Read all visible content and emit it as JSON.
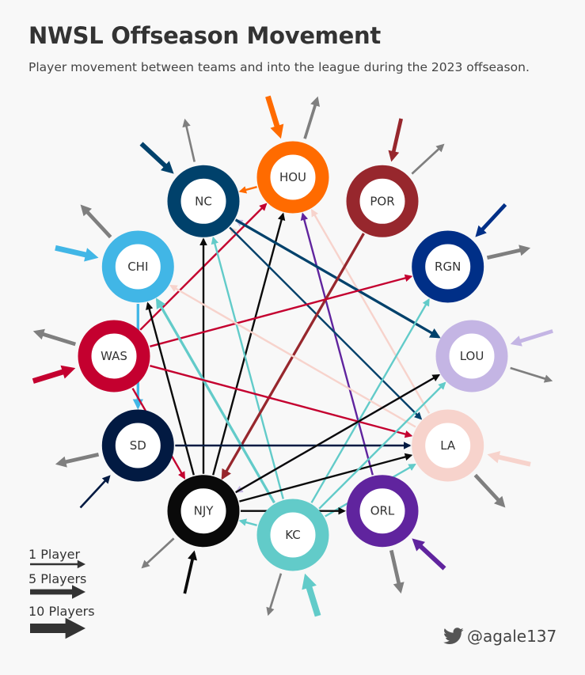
{
  "title": "NWSL Offseason Movement",
  "subtitle": "Player movement between teams and into the league during the 2023 offseason.",
  "handle": "@agale137",
  "handle_icon": "twitter-bird-icon",
  "legend": [
    {
      "label": "1 Player",
      "players": 1
    },
    {
      "label": "5 Players",
      "players": 5
    },
    {
      "label": "10 Players",
      "players": 10
    }
  ],
  "teams": [
    {
      "id": "HOU",
      "label": "HOU",
      "color": "#FF6B00"
    },
    {
      "id": "POR",
      "label": "POR",
      "color": "#97272D"
    },
    {
      "id": "RGN",
      "label": "RGN",
      "color": "#002F87"
    },
    {
      "id": "LOU",
      "label": "LOU",
      "color": "#C4B5E4"
    },
    {
      "id": "LA",
      "label": "LA",
      "color": "#F7D3CC"
    },
    {
      "id": "ORL",
      "label": "ORL",
      "color": "#60249E"
    },
    {
      "id": "KC",
      "label": "KC",
      "color": "#62CBC9"
    },
    {
      "id": "NJY",
      "label": "NJY",
      "color": "#0A0A0A"
    },
    {
      "id": "SD",
      "label": "SD",
      "color": "#021A42"
    },
    {
      "id": "WAS",
      "label": "WAS",
      "color": "#C4002F"
    },
    {
      "id": "CHI",
      "label": "CHI",
      "color": "#41B6E6"
    },
    {
      "id": "NC",
      "label": "NC",
      "color": "#00416B"
    }
  ],
  "league_colors": {
    "out": "#7f7f7f"
  },
  "movements": [
    {
      "from": "WAS",
      "to": "HOU",
      "players": 1
    },
    {
      "from": "NJY",
      "to": "HOU",
      "players": 1
    },
    {
      "from": "LA",
      "to": "HOU",
      "players": 1
    },
    {
      "from": "ORL",
      "to": "HOU",
      "players": 1
    },
    {
      "from": "NJY",
      "to": "NC",
      "players": 1
    },
    {
      "from": "KC",
      "to": "NC",
      "players": 1
    },
    {
      "from": "LOU",
      "to": "NC",
      "players": 1
    },
    {
      "from": "LA",
      "to": "NC",
      "players": 1
    },
    {
      "from": "HOU",
      "to": "NC",
      "players": 1
    },
    {
      "from": "NC",
      "to": "LOU",
      "players": 2
    },
    {
      "from": "NC",
      "to": "LA",
      "players": 1
    },
    {
      "from": "POR",
      "to": "NJY",
      "players": 2
    },
    {
      "from": "WAS",
      "to": "RGN",
      "players": 1
    },
    {
      "from": "KC",
      "to": "RGN",
      "players": 1
    },
    {
      "from": "LA",
      "to": "CHI",
      "players": 1
    },
    {
      "from": "KC",
      "to": "CHI",
      "players": 2
    },
    {
      "from": "NJY",
      "to": "CHI",
      "players": 1
    },
    {
      "from": "CHI",
      "to": "SD",
      "players": 2
    },
    {
      "from": "WAS",
      "to": "NJY",
      "players": 1
    },
    {
      "from": "WAS",
      "to": "LA",
      "players": 1
    },
    {
      "from": "SD",
      "to": "LA",
      "players": 1
    },
    {
      "from": "NJY",
      "to": "LA",
      "players": 1
    },
    {
      "from": "KC",
      "to": "LA",
      "players": 1
    },
    {
      "from": "LOU",
      "to": "NJY",
      "players": 1
    },
    {
      "from": "NJY",
      "to": "LOU",
      "players": 1
    },
    {
      "from": "KC",
      "to": "LOU",
      "players": 1
    },
    {
      "from": "KC",
      "to": "NJY",
      "players": 1
    },
    {
      "from": "NJY",
      "to": "ORL",
      "players": 1
    }
  ],
  "external": [
    {
      "team": "HOU",
      "dir": "in",
      "players": 5
    },
    {
      "team": "HOU",
      "dir": "out",
      "players": 2
    },
    {
      "team": "POR",
      "dir": "in",
      "players": 3
    },
    {
      "team": "POR",
      "dir": "out",
      "players": 1
    },
    {
      "team": "RGN",
      "dir": "in",
      "players": 3
    },
    {
      "team": "RGN",
      "dir": "out",
      "players": 3
    },
    {
      "team": "LOU",
      "dir": "in",
      "players": 3
    },
    {
      "team": "LOU",
      "dir": "out",
      "players": 1
    },
    {
      "team": "LA",
      "dir": "in",
      "players": 4
    },
    {
      "team": "LA",
      "dir": "out",
      "players": 3
    },
    {
      "team": "ORL",
      "dir": "in",
      "players": 4
    },
    {
      "team": "ORL",
      "dir": "out",
      "players": 3
    },
    {
      "team": "KC",
      "dir": "in",
      "players": 6
    },
    {
      "team": "KC",
      "dir": "out",
      "players": 1
    },
    {
      "team": "NJY",
      "dir": "in",
      "players": 2
    },
    {
      "team": "NJY",
      "dir": "out",
      "players": 1
    },
    {
      "team": "SD",
      "dir": "in",
      "players": 1
    },
    {
      "team": "SD",
      "dir": "out",
      "players": 3
    },
    {
      "team": "WAS",
      "dir": "in",
      "players": 5
    },
    {
      "team": "WAS",
      "dir": "out",
      "players": 3
    },
    {
      "team": "CHI",
      "dir": "in",
      "players": 5
    },
    {
      "team": "CHI",
      "dir": "out",
      "players": 3
    },
    {
      "team": "NC",
      "dir": "in",
      "players": 4
    },
    {
      "team": "NC",
      "dir": "out",
      "players": 1
    }
  ]
}
